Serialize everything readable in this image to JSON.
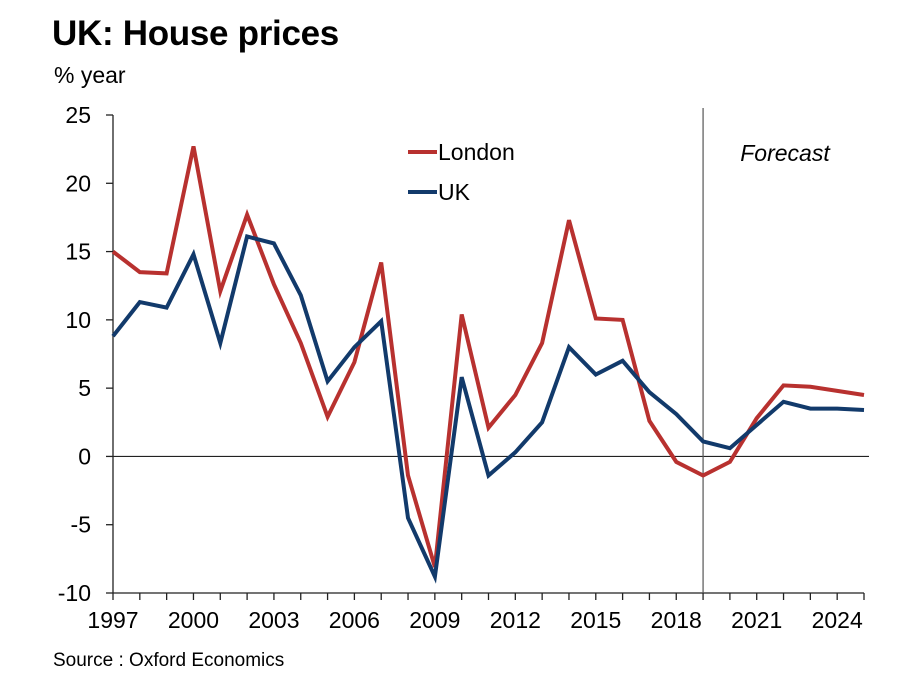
{
  "chart_data": {
    "type": "line",
    "title": "UK: House prices",
    "ylabel": "% year",
    "xlabel": "",
    "source": "Source : Oxford Economics",
    "x": [
      1997,
      1998,
      1999,
      2000,
      2001,
      2002,
      2003,
      2004,
      2005,
      2006,
      2007,
      2008,
      2009,
      2010,
      2011,
      2012,
      2013,
      2014,
      2015,
      2016,
      2017,
      2018,
      2019,
      2020,
      2021,
      2022,
      2023,
      2024,
      2025
    ],
    "xticks": [
      1997,
      2000,
      2003,
      2006,
      2009,
      2012,
      2015,
      2018,
      2021,
      2024
    ],
    "yticks": [
      25,
      20,
      15,
      10,
      5,
      0,
      -5,
      -10
    ],
    "ylim": [
      -10,
      25
    ],
    "xlim": [
      1997,
      2025
    ],
    "grid": false,
    "legend_position": "top-center",
    "forecast_start": 2019,
    "forecast_label": "Forecast",
    "series": [
      {
        "name": "London",
        "color": "#b8312f",
        "values": [
          15.0,
          13.5,
          13.4,
          22.7,
          12.1,
          17.7,
          12.6,
          8.3,
          2.9,
          6.9,
          14.2,
          -1.4,
          -8.1,
          10.4,
          2.1,
          4.5,
          8.3,
          17.3,
          10.1,
          10.0,
          2.6,
          -0.4,
          -1.4,
          -0.4,
          2.8,
          5.2,
          5.1,
          4.8,
          4.5
        ]
      },
      {
        "name": "UK",
        "color": "#123a6b",
        "values": [
          8.8,
          11.3,
          10.9,
          14.8,
          8.3,
          16.1,
          15.6,
          11.8,
          5.5,
          8.0,
          9.9,
          -4.5,
          -8.8,
          5.8,
          -1.4,
          0.3,
          2.5,
          8.0,
          6.0,
          7.0,
          4.7,
          3.1,
          1.1,
          0.6,
          2.3,
          4.0,
          3.5,
          3.5,
          3.4
        ]
      }
    ]
  }
}
